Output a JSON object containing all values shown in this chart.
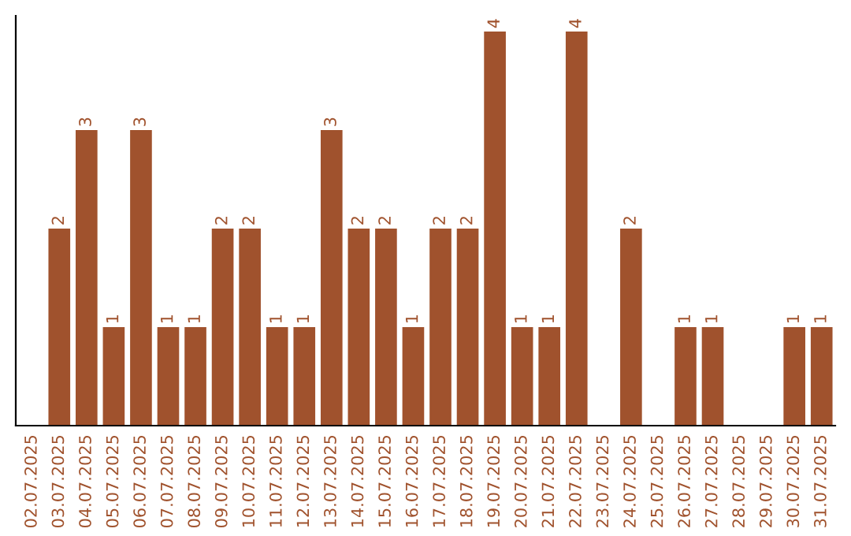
{
  "chart_data": {
    "type": "bar",
    "categories": [
      "02.07.2025",
      "03.07.2025",
      "04.07.2025",
      "05.07.2025",
      "06.07.2025",
      "07.07.2025",
      "08.07.2025",
      "09.07.2025",
      "10.07.2025",
      "11.07.2025",
      "12.07.2025",
      "13.07.2025",
      "14.07.2025",
      "15.07.2025",
      "16.07.2025",
      "17.07.2025",
      "18.07.2025",
      "19.07.2025",
      "20.07.2025",
      "21.07.2025",
      "22.07.2025",
      "23.07.2025",
      "24.07.2025",
      "25.07.2025",
      "26.07.2025",
      "27.07.2025",
      "28.07.2025",
      "29.07.2025",
      "30.07.2025",
      "31.07.2025"
    ],
    "values": [
      null,
      2,
      3,
      1,
      3,
      1,
      1,
      2,
      2,
      1,
      1,
      3,
      2,
      2,
      1,
      2,
      2,
      4,
      1,
      1,
      4,
      null,
      2,
      null,
      1,
      1,
      null,
      null,
      1,
      1
    ],
    "color": "#a0522d",
    "ylim": [
      0,
      4.16
    ],
    "data_labels": true,
    "grid": false,
    "legend": false,
    "tick_labels": "x"
  }
}
